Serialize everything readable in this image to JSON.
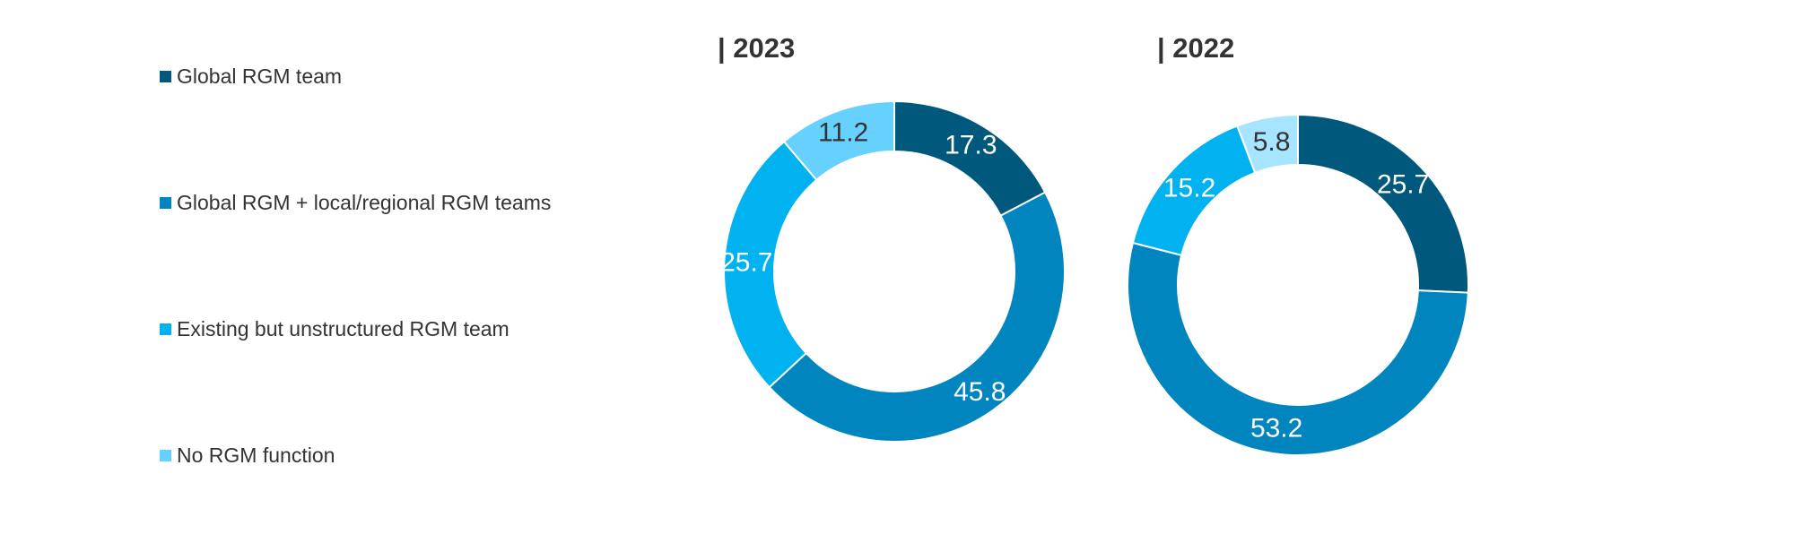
{
  "chart_data": [
    {
      "type": "pie",
      "title": "| 2023",
      "categories": [
        "Global RGM team",
        "Global RGM + local/regional RGM teams",
        "Existing but unstructured RGM team",
        "No RGM function"
      ],
      "values": [
        17.3,
        45.8,
        25.7,
        11.2
      ],
      "colors": [
        "#00587c",
        "#0085bf",
        "#00b2f0",
        "#66d0ff"
      ],
      "value_labels": [
        "17.3",
        "45.8",
        "25.7",
        "11.2"
      ],
      "label_colors": [
        "#ffffff",
        "#ffffff",
        "#ffffff",
        "#333333"
      ],
      "donut": true
    },
    {
      "type": "pie",
      "title": "| 2022",
      "categories": [
        "Global RGM team",
        "Global RGM + local/regional RGM teams",
        "Existing but unstructured RGM team",
        "No RGM function"
      ],
      "values": [
        25.7,
        53.2,
        15.2,
        5.8
      ],
      "colors": [
        "#00587c",
        "#0085bf",
        "#00b2f0",
        "#a6e4ff"
      ],
      "value_labels": [
        "25.7",
        "53.2",
        "15.2",
        "5.8"
      ],
      "label_colors": [
        "#ffffff",
        "#ffffff",
        "#ffffff",
        "#333333"
      ],
      "donut": true
    }
  ],
  "legend": {
    "placement": "left",
    "items": [
      {
        "label": "Global RGM team",
        "color": "#00587c"
      },
      {
        "label": "Global RGM + local/regional RGM teams",
        "color": "#0085bf"
      },
      {
        "label": "Existing but unstructured RGM team",
        "color": "#00b2f0"
      },
      {
        "label": "No RGM function",
        "color": "#66d0ff"
      }
    ]
  }
}
